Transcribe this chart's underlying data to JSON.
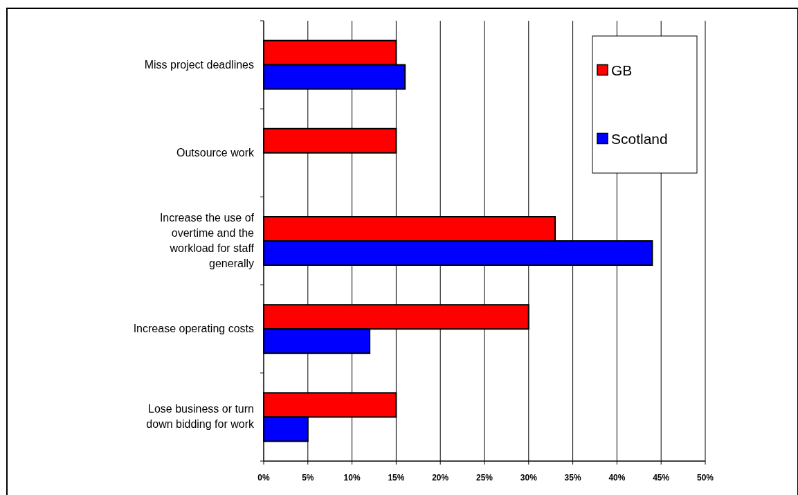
{
  "chart_data": {
    "type": "bar",
    "orientation": "horizontal",
    "categories": [
      "Miss project deadlines",
      "Outsource work",
      "Increase the use of overtime and the workload for staff generally",
      "Increase operating costs",
      "Lose business or turn down bidding for work"
    ],
    "series": [
      {
        "name": "GB",
        "color": "#ff0000",
        "values": [
          15,
          15,
          33,
          30,
          15
        ]
      },
      {
        "name": "Scotland",
        "color": "#0000ff",
        "values": [
          16,
          null,
          44,
          12,
          5
        ]
      }
    ],
    "xlim": [
      0,
      50
    ],
    "xticks": [
      {
        "value": 0,
        "label": "0%"
      },
      {
        "value": 5,
        "label": "5%"
      },
      {
        "value": 10,
        "label": "10%"
      },
      {
        "value": 15,
        "label": "15%"
      },
      {
        "value": 20,
        "label": "20%"
      },
      {
        "value": 25,
        "label": "25%"
      },
      {
        "value": 30,
        "label": "30%"
      },
      {
        "value": 35,
        "label": "35%"
      },
      {
        "value": 40,
        "label": "40%"
      },
      {
        "value": 45,
        "label": "45%"
      },
      {
        "value": 50,
        "label": "50%"
      }
    ],
    "grid": "x",
    "legend": "top right"
  }
}
